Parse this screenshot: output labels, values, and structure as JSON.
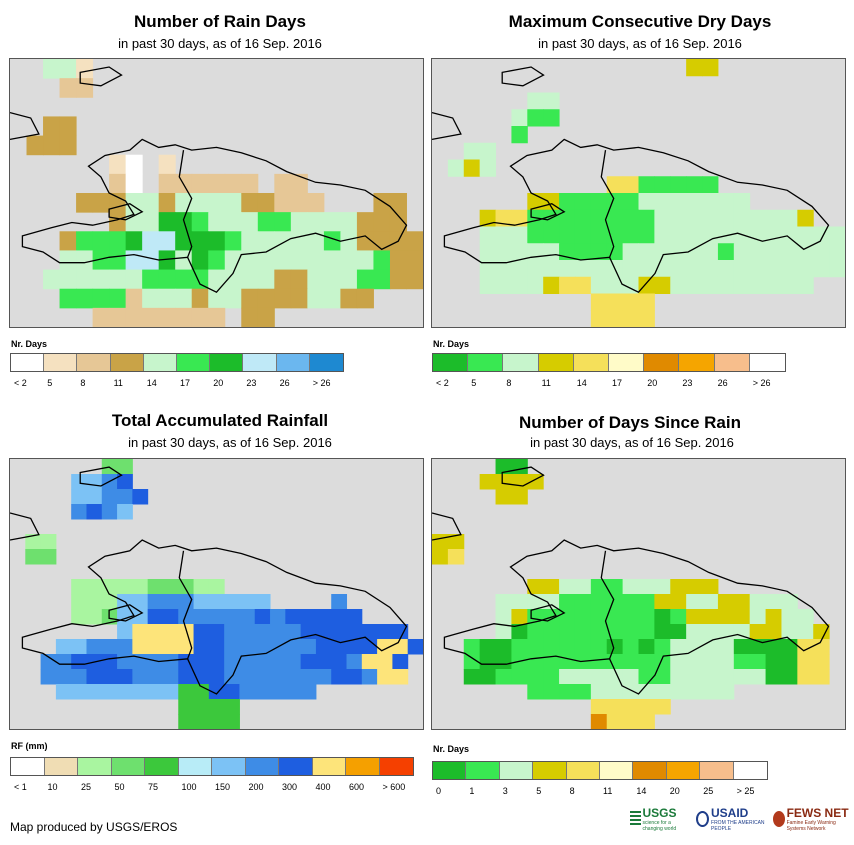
{
  "panels": [
    {
      "id": "rain-days",
      "title": "Number of Rain Days",
      "subtitle": "in past 30 days, as of 16 Sep. 2016",
      "legend_title": "Nr. Days",
      "legend_colors": [
        "#ffffff",
        "#f5e1c0",
        "#e6c796",
        "#c9a347",
        "#c7f5cc",
        "#39e852",
        "#1cbc2a",
        "#bfe9f7",
        "#6bb7ef",
        "#1e89d1"
      ],
      "legend_ticks": [
        "< 2",
        "5",
        "8",
        "11",
        "14",
        "17",
        "20",
        "23",
        "26",
        "> 26"
      ],
      "grid": [
        "..EEB....................",
        "...CC....................",
        ".........................",
        "..DD.....................",
        ".DDD.....................",
        "......BA.B...............",
        "......CA.CCCCCC.CC.......",
        "....DDDEEDEEEEDDCCC...DD.",
        "......DEEGGFEEEFFEEEEDDD.",
        "...DFFFGHHGGGFEEEEEFEDDDD",
        "...EEFFHHGEGFEEEEEEEEEFDD",
        "..EEEEEEFFFFEEEEDDEEEFFDD",
        "...FFFFCEEEDEEDDDDEEDD...",
        ".....CCCCCCCC.DD........."
      ]
    },
    {
      "id": "max-dry-days",
      "title": "Maximum Consecutive Dry Days",
      "subtitle": "in past 30 days, as of 16 Sep. 2016",
      "legend_title": "Nr. Days",
      "legend_colors": [
        "#1cbc2a",
        "#39e852",
        "#c7f5cc",
        "#d6cc00",
        "#f5e05a",
        "#fffbc8",
        "#e08a00",
        "#f5a500",
        "#f7be8c",
        "#ffffff"
      ],
      "legend_ticks": [
        "< 2",
        "5",
        "8",
        "11",
        "14",
        "17",
        "20",
        "23",
        "26",
        "> 26"
      ],
      "grid": [
        "................DD........",
        "..........................",
        "......CC..................",
        ".....CBB..................",
        ".....B....................",
        "..CC......................",
        ".CDC......................",
        "...........EEBBBBB........",
        "......DDBBBBBCCCCCCC......",
        "...DEEBBBBBBBBCCCCCCCCCD..",
        "...CCCBBBBBBBBCCCCCCCCCCCC",
        "...CCCCCBBBBCCCCCCBCCCCCCC",
        "...CCCCCCCCCCCCCCCCCCCCCCC",
        "...CCCCDEECCCDDCCCCCCCCC..",
        "..........EEEE............",
        "..........EEEE............"
      ]
    },
    {
      "id": "total-rainfall",
      "title": "Total Accumulated Rainfall",
      "subtitle": "in past 30 days, as of 16 Sep. 2016",
      "legend_title": "RF (mm)",
      "legend_colors": [
        "#ffffff",
        "#f0ddb4",
        "#a9f5a0",
        "#6ee06e",
        "#3cc83c",
        "#b8ecf7",
        "#7cc2f5",
        "#3e8ce6",
        "#1e5ee0",
        "#fde47a",
        "#f5a000",
        "#f54000"
      ],
      "legend_ticks": [
        "< 1",
        "10",
        "25",
        "50",
        "75",
        "100",
        "150",
        "200",
        "300",
        "400",
        "600",
        "> 600"
      ],
      "grid": [
        "......DD...................",
        "....GGHI...................",
        "....GGHHI..................",
        "....HIHG...................",
        "...........................",
        ".CC........................",
        ".DD........................",
        "...........................",
        "....CCCCCDDDCC.............",
        "....CCCGGHHHGGGGG....H.....",
        "....CCDGGIIHHHHHIHIIIII....",
        ".......GJJJJIIHHHHHIIIIIII.",
        "...GGHHHJJJJIIHHHHHHIIIIJJI",
        "..HHIIIHHHHIIIHHHHHIIIHJJI.",
        "..HHHIIIHHHIIIHHHHHHHIIHJJ.",
        "...GGGGGGGGEEIIHHHHH.......",
        "...........EEEE............",
        "...........EEEE............"
      ]
    },
    {
      "id": "days-since-rain",
      "title": "Number of Days Since Rain",
      "subtitle": "in past 30 days, as of 16 Sep. 2016",
      "legend_title": "Nr. Days",
      "legend_colors": [
        "#1cbc2a",
        "#39e852",
        "#c7f5cc",
        "#d6cc00",
        "#f5e05a",
        "#fffbc8",
        "#e08a00",
        "#f5a500",
        "#f7be8c",
        "#ffffff"
      ],
      "legend_ticks": [
        "0",
        "1",
        "3",
        "5",
        "8",
        "11",
        "14",
        "20",
        "25",
        "> 25"
      ],
      "grid": [
        "....AA....................",
        "...DDDD...................",
        "....DD....................",
        "..........................",
        "..........................",
        "DD........................",
        "DE........................",
        "..........................",
        "......DDCCBBCCCDDD........",
        "....CCCCBBBBBBDDCCDDCCC...",
        "....CDBBBBBBBBABDDDDCDCC..",
        "....CABBBBBBBBAACCCCDDCCD.",
        "..BAABBBBBBABABCCCCAAAAEE.",
        "..BAABBBBBBBBBBCCCCBBAAEE.",
        "..AABBBBCCCCCBBCCCCCCAAEE.",
        "......BBBBCCCCCCCCC.......",
        "..........EEEEE...........",
        "..........GEEE............"
      ]
    }
  ],
  "credit": "Map produced by USGS/EROS",
  "logos": {
    "usgs": "USGS",
    "usgs_tagline": "science for a changing world",
    "usaid": "USAID",
    "usaid_tagline": "FROM THE AMERICAN PEOPLE",
    "fews": "FEWS NET",
    "fews_tagline": "Famine Early Warning Systems Network"
  }
}
